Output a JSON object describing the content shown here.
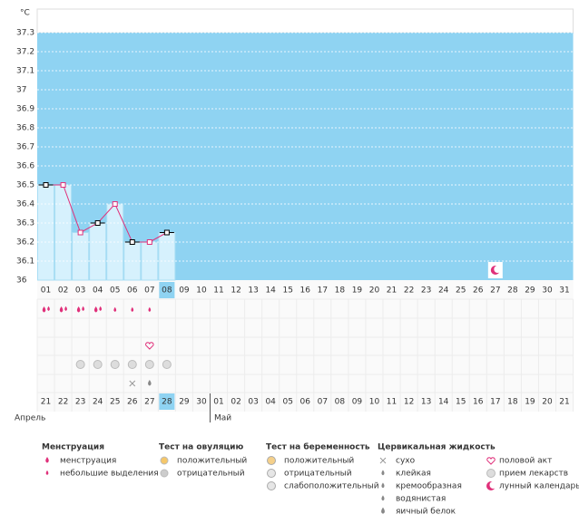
{
  "chart_data": {
    "type": "line",
    "ylabel": "°C",
    "categories": [
      "01",
      "02",
      "03",
      "04",
      "05",
      "06",
      "07",
      "08",
      "09",
      "10",
      "11",
      "12",
      "13",
      "14",
      "15",
      "16",
      "17",
      "18",
      "19",
      "20",
      "21",
      "22",
      "23",
      "24",
      "25",
      "26",
      "27",
      "28",
      "29",
      "30",
      "31"
    ],
    "values": [
      36.5,
      36.5,
      36.25,
      36.3,
      36.4,
      36.2,
      36.2,
      36.25,
      null,
      null,
      null,
      null,
      null,
      null,
      null,
      null,
      null,
      null,
      null,
      null,
      null,
      null,
      null,
      null,
      null,
      null,
      null,
      null,
      null,
      null,
      null
    ],
    "color": "#e0307a",
    "ylim": [
      36,
      37.3
    ],
    "yticks": [
      36,
      36.1,
      36.2,
      36.3,
      36.4,
      36.5,
      36.6,
      36.7,
      36.8,
      36.9,
      37,
      37.1,
      37.2,
      37.3
    ],
    "grid": true,
    "dates": [
      "21",
      "22",
      "23",
      "24",
      "25",
      "26",
      "27",
      "28",
      "29",
      "30",
      "01",
      "02",
      "03",
      "04",
      "05",
      "06",
      "07",
      "08",
      "09",
      "10",
      "11",
      "12",
      "13",
      "14",
      "15",
      "16",
      "17",
      "18",
      "19",
      "20",
      "21"
    ],
    "months": [
      "Апрель",
      "Май"
    ]
  },
  "legend": [
    {
      "title": "Менструация",
      "items": [
        "менструация",
        "небольшие выделения"
      ]
    },
    {
      "title": "Тест на овуляцию",
      "items": [
        "положительный",
        "отрицательный"
      ]
    },
    {
      "title": "Тест на беременность",
      "items": [
        "положительный",
        "отрицательный",
        "слабоположительный"
      ]
    },
    {
      "title": "Цервикальная жидкость",
      "items": [
        "сухо",
        "клейкая",
        "кремообразная",
        "водянистая",
        "яичный белок"
      ]
    },
    {
      "items": [
        "половой акт",
        "прием лекарств",
        "лунный календарь"
      ]
    }
  ]
}
